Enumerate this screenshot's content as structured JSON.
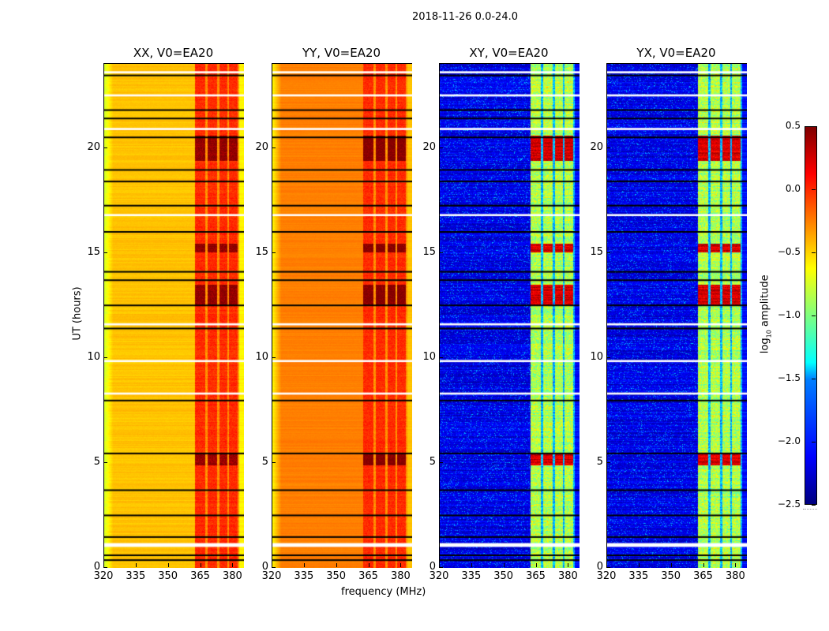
{
  "chart_data": {
    "type": "heatmap",
    "suptitle": "2018-11-26 0.0-24.0",
    "xlabel": "frequency (MHz)",
    "ylabel": "UT (hours)",
    "xlim": [
      320,
      385
    ],
    "ylim": [
      0,
      24
    ],
    "xticks": [
      "320",
      "335",
      "350",
      "365",
      "380"
    ],
    "xtick_values": [
      320,
      335,
      350,
      365,
      380
    ],
    "yticks": [
      "0",
      "5",
      "10",
      "15",
      "20"
    ],
    "ytick_values": [
      0,
      5,
      10,
      15,
      20
    ],
    "colorbar": {
      "label": "log10 amplitude",
      "label_base": "log",
      "label_sub": "10",
      "label_rest": " amplitude",
      "range": [
        -2.5,
        0.5
      ],
      "ticks": [
        "0.5",
        "0.0",
        "−0.5",
        "−1.0",
        "−1.5",
        "−2.0",
        "−2.5"
      ],
      "tick_values": [
        0.5,
        0.0,
        -0.5,
        -1.0,
        -1.5,
        -2.0,
        -2.5
      ],
      "colormap": "jet"
    },
    "panels": [
      {
        "title": "XX, V0=EA20",
        "low_band_level": -0.45,
        "edge_level": -0.75,
        "high_band_level": -0.1,
        "hot_level": 0.4,
        "noise": 0.08
      },
      {
        "title": "YY, V0=EA20",
        "low_band_level": -0.25,
        "edge_level": -0.6,
        "high_band_level": -0.1,
        "hot_level": 0.45,
        "noise": 0.06
      },
      {
        "title": "XY, V0=EA20",
        "low_band_level": -2.3,
        "edge_level": -2.3,
        "high_band_level": -0.85,
        "hot_level": 0.2,
        "noise": 0.25
      },
      {
        "title": "YX, V0=EA20",
        "low_band_level": -2.3,
        "edge_level": -2.3,
        "high_band_level": -0.85,
        "hot_level": 0.2,
        "noise": 0.25
      }
    ],
    "high_band_channels_mhz": [
      [
        362,
        367
      ],
      [
        368,
        372.5
      ],
      [
        373.5,
        377
      ],
      [
        378,
        382
      ]
    ],
    "hot_intervals_hours": [
      [
        15.05,
        15.45
      ],
      [
        12.5,
        13.5
      ],
      [
        4.9,
        5.5
      ],
      [
        19.4,
        20.6
      ]
    ],
    "flagged_black_hours": [
      0.37,
      0.6,
      1.47,
      2.5,
      3.7,
      5.45,
      7.97,
      11.4,
      12.5,
      13.7,
      14.1,
      16.0,
      17.25,
      18.4,
      18.95,
      20.5,
      21.4,
      21.8,
      23.45
    ],
    "flagged_white_hours": [
      [
        1.0,
        1.18
      ],
      [
        8.25,
        8.35
      ],
      [
        9.8,
        9.9
      ],
      [
        11.55,
        11.65
      ],
      [
        16.75,
        16.85
      ],
      [
        20.85,
        20.95
      ],
      [
        22.45,
        22.55
      ],
      [
        23.55,
        23.65
      ]
    ]
  }
}
